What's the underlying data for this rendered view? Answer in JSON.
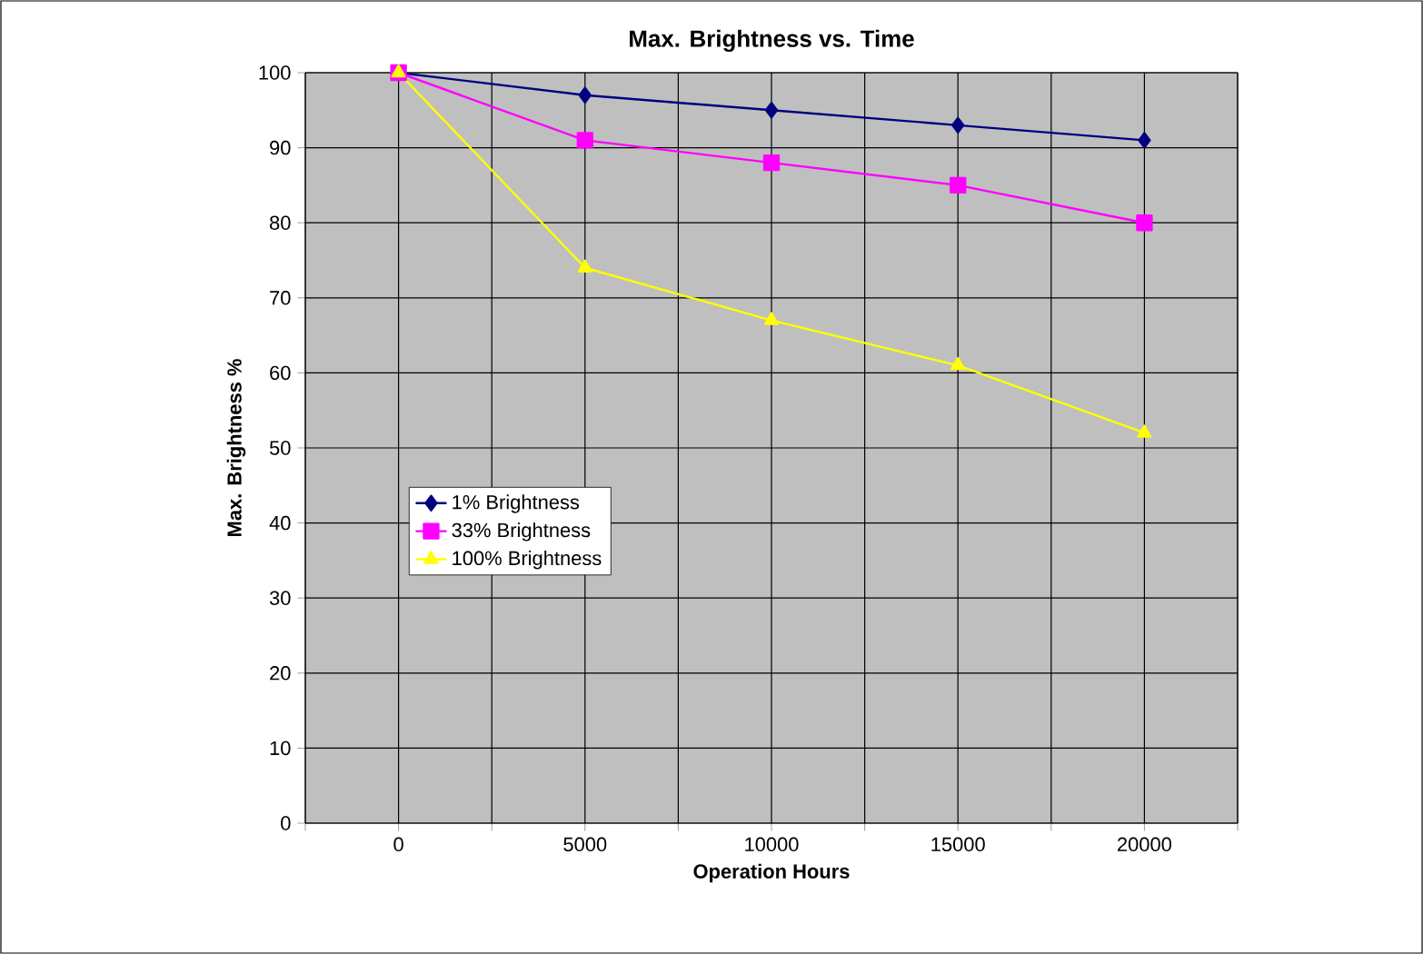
{
  "chart_data": {
    "type": "line",
    "title": "Max. Brightness vs. Time",
    "xlabel": "Operation Hours",
    "ylabel": "Max. Brightness %",
    "x": [
      0,
      5000,
      10000,
      15000,
      20000
    ],
    "series": [
      {
        "name": "1% Brightness",
        "color": "#000080",
        "marker": "diamond",
        "values": [
          100,
          97,
          95,
          93,
          91
        ]
      },
      {
        "name": "33% Brightness",
        "color": "#ff00ff",
        "marker": "square",
        "values": [
          100,
          91,
          88,
          85,
          80
        ]
      },
      {
        "name": "100% Brightness",
        "color": "#ffff00",
        "marker": "triangle",
        "values": [
          100,
          74,
          67,
          61,
          52
        ]
      }
    ],
    "xlim": [
      -2500,
      22500
    ],
    "xticks": [
      {
        "value": -2500,
        "label": null
      },
      0,
      {
        "value": 2500,
        "label": null
      },
      5000,
      {
        "value": 7500,
        "label": null
      },
      10000,
      {
        "value": 12500,
        "label": null
      },
      15000,
      {
        "value": 17500,
        "label": null
      },
      20000,
      {
        "value": 22500,
        "label": null
      }
    ],
    "ylim": [
      0,
      100
    ],
    "yticks": [
      0,
      10,
      20,
      30,
      40,
      50,
      60,
      70,
      80,
      90,
      100
    ],
    "grid": true,
    "legend": "left",
    "line_style": "solid"
  }
}
